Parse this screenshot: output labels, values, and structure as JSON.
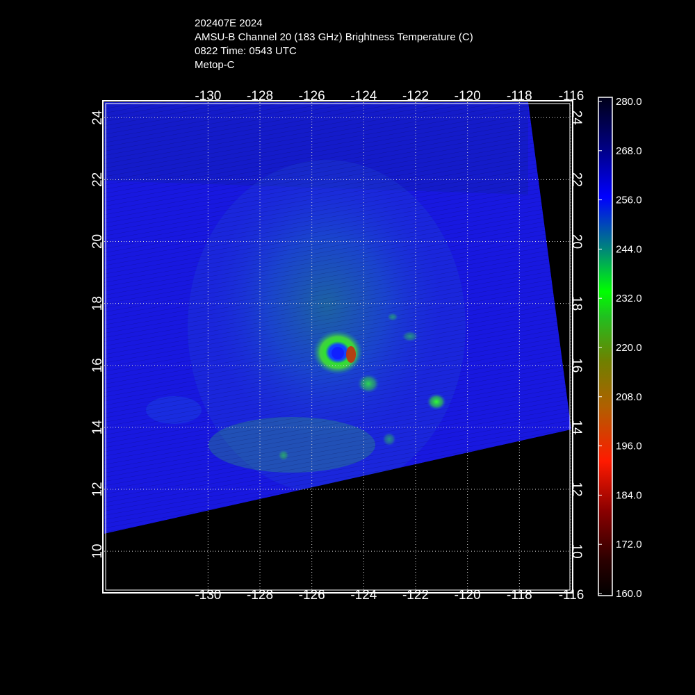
{
  "header": {
    "line1": "202407E 2024",
    "line2": "AMSU-B Channel 20 (183 GHz) Brightness Temperature (C)",
    "line3": "0822 Time: 0543 UTC",
    "line4": "Metop-C"
  },
  "map": {
    "lon_range": [
      -134,
      -116
    ],
    "lat_range": [
      8.7,
      24.5
    ],
    "lon_ticks": [
      -130,
      -128,
      -126,
      -124,
      -122,
      -120,
      -118,
      -116
    ],
    "lat_ticks": [
      10,
      12,
      14,
      16,
      18,
      20,
      22,
      24
    ],
    "lon_tick_labels": [
      "-130",
      "-128",
      "-126",
      "-124",
      "-122",
      "-120",
      "-118",
      "-116"
    ],
    "lat_tick_labels": [
      "10",
      "12",
      "14",
      "16",
      "18",
      "20",
      "22",
      "24"
    ],
    "grid": "dotted",
    "background_color": "#1818e0",
    "swath_edge_color": "#000000",
    "storm_eye": {
      "lon": -123.9,
      "lat": 16.4
    }
  },
  "colorbar": {
    "labels": [
      "280.0",
      "268.0",
      "256.0",
      "244.0",
      "232.0",
      "220.0",
      "208.0",
      "196.0",
      "184.0",
      "172.0",
      "160.0"
    ],
    "min": 160.0,
    "max": 280.0,
    "colors": [
      "#000000",
      "#2a0000",
      "#8a0000",
      "#ff1a00",
      "#b06000",
      "#708000",
      "#20c020",
      "#00ff00",
      "#008080",
      "#0000ff",
      "#000080",
      "#000018"
    ]
  }
}
